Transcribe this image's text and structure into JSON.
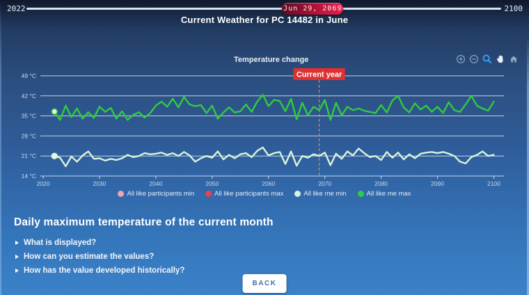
{
  "timeline": {
    "start_label": "2022",
    "end_label": "2100",
    "current_date": "Jun 29, 2069",
    "position_pct": 60.3
  },
  "page_title": "Current Weather for PC 14482 in June",
  "chart": {
    "title": "Temperature change",
    "annotation": "Current year",
    "toolbar": [
      "zoom-in",
      "zoom-out",
      "box-zoom",
      "pan",
      "reset"
    ]
  },
  "chart_data": {
    "type": "line",
    "title": "Temperature change",
    "x_start_year": 2022,
    "x_ticks": [
      2020,
      2030,
      2040,
      2050,
      2060,
      2070,
      2080,
      2090,
      2100
    ],
    "y_ticks": [
      49,
      42,
      35,
      28,
      21,
      14
    ],
    "y_unit": "°C",
    "xlim": [
      2019.5,
      2101.8
    ],
    "ylim": [
      14,
      49
    ],
    "grid": true,
    "legend_position": "bottom",
    "current_year": 2069,
    "current_year_line_color": "#c9964b",
    "annotation_color": "#e03131",
    "legend": [
      {
        "label": "All like participants min",
        "color": "#f0a3b8",
        "plotted": false
      },
      {
        "label": "All like participants max",
        "color": "#e8414f",
        "plotted": false
      },
      {
        "label": "All like me min",
        "color": "#d9f3dc",
        "plotted": true
      },
      {
        "label": "All like me max",
        "color": "#2ecc40",
        "plotted": true
      }
    ],
    "series": [
      {
        "name": "All like me max",
        "color": "#2ecc40",
        "values": [
          36.5,
          33.6,
          38.6,
          34.6,
          37.6,
          34.0,
          36.3,
          34.3,
          38.2,
          36.4,
          37.8,
          34.0,
          36.6,
          33.6,
          35.4,
          36.3,
          34.4,
          36.0,
          38.6,
          40.0,
          38.2,
          41.0,
          38.0,
          41.6,
          39.0,
          38.4,
          38.8,
          36.0,
          38.6,
          34.0,
          36.2,
          38.0,
          36.2,
          36.6,
          39.0,
          36.4,
          40.0,
          42.4,
          38.4,
          40.6,
          40.2,
          36.6,
          41.0,
          33.8,
          39.6,
          35.2,
          38.2,
          37.0,
          40.6,
          33.6,
          39.6,
          35.2,
          38.2,
          37.0,
          37.6,
          36.8,
          36.4,
          36.0,
          38.8,
          36.2,
          40.4,
          42.0,
          38.0,
          36.2,
          39.4,
          37.2,
          38.6,
          36.4,
          38.2,
          36.0,
          39.8,
          37.0,
          36.4,
          39.0,
          42.0,
          38.6,
          37.6,
          36.8,
          40.0
        ]
      },
      {
        "name": "All like me min",
        "color": "#d9f3dc",
        "values": [
          21.0,
          20.4,
          17.4,
          20.8,
          19.0,
          21.2,
          22.6,
          20.0,
          20.2,
          19.4,
          20.0,
          19.6,
          20.2,
          21.4,
          20.6,
          21.0,
          22.0,
          21.6,
          21.8,
          22.2,
          21.4,
          22.0,
          21.0,
          22.4,
          21.2,
          19.0,
          20.2,
          21.0,
          20.4,
          22.6,
          19.8,
          21.4,
          20.2,
          21.6,
          22.0,
          20.6,
          22.8,
          24.0,
          21.2,
          22.0,
          22.4,
          18.2,
          22.6,
          17.6,
          21.0,
          20.4,
          21.6,
          21.0,
          22.2,
          17.8,
          21.8,
          20.0,
          22.6,
          21.2,
          23.6,
          22.0,
          20.6,
          21.0,
          19.6,
          22.4,
          20.4,
          22.2,
          19.8,
          21.6,
          20.2,
          21.8,
          22.2,
          22.4,
          22.0,
          22.4,
          21.8,
          21.0,
          19.0,
          18.4,
          20.6,
          21.4,
          22.6,
          21.0,
          21.4
        ]
      }
    ]
  },
  "details": {
    "heading": "Daily maximum temperature of the current month",
    "questions": [
      "What is displayed?",
      "How can you estimate the values?",
      "How has the value developed historically?"
    ]
  },
  "actions": {
    "back_label": "BACK"
  }
}
